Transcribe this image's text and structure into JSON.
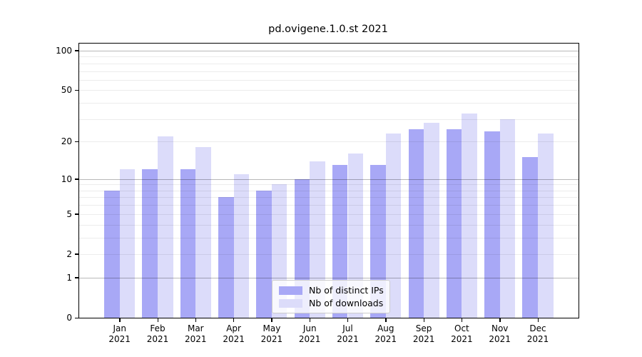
{
  "title": "pd.ovigene.1.0.st 2021",
  "colors": {
    "distinct_ips_bar": "#a8a8f6",
    "downloads_bar": "#dcdcfa",
    "axis": "#000000",
    "legend_border": "#cccccc"
  },
  "legend": {
    "items": [
      "Nb of distinct IPs",
      "Nb of downloads"
    ]
  },
  "chart_data": {
    "type": "bar",
    "title": "pd.ovigene.1.0.st 2021",
    "categories": [
      {
        "month": "Jan",
        "year": "2021"
      },
      {
        "month": "Feb",
        "year": "2021"
      },
      {
        "month": "Mar",
        "year": "2021"
      },
      {
        "month": "Apr",
        "year": "2021"
      },
      {
        "month": "May",
        "year": "2021"
      },
      {
        "month": "Jun",
        "year": "2021"
      },
      {
        "month": "Jul",
        "year": "2021"
      },
      {
        "month": "Aug",
        "year": "2021"
      },
      {
        "month": "Sep",
        "year": "2021"
      },
      {
        "month": "Oct",
        "year": "2021"
      },
      {
        "month": "Nov",
        "year": "2021"
      },
      {
        "month": "Dec",
        "year": "2021"
      }
    ],
    "series": [
      {
        "name": "Nb of distinct IPs",
        "color": "#a8a8f6",
        "values": [
          8,
          12,
          12,
          7,
          8,
          10,
          13,
          13,
          25,
          25,
          24,
          15
        ]
      },
      {
        "name": "Nb of downloads",
        "color": "#dcdcfa",
        "values": [
          12,
          22,
          18,
          11,
          9,
          14,
          16,
          23,
          28,
          33,
          30,
          23
        ]
      }
    ],
    "yscale": "log1p",
    "ylim": [
      0,
      113
    ],
    "ytick_values": [
      100,
      50,
      20,
      10,
      5,
      2,
      1,
      0
    ],
    "ytick_labels": [
      "100",
      "50",
      "20",
      "10",
      "5",
      "2",
      "1",
      "0"
    ],
    "grid_major_values": [
      1,
      10,
      100
    ],
    "grid_minor_values": [
      2,
      3,
      4,
      5,
      6,
      7,
      8,
      9,
      20,
      30,
      40,
      50,
      60,
      70,
      80,
      90
    ],
    "grid": "horizontal",
    "legend_position": "lower center"
  }
}
